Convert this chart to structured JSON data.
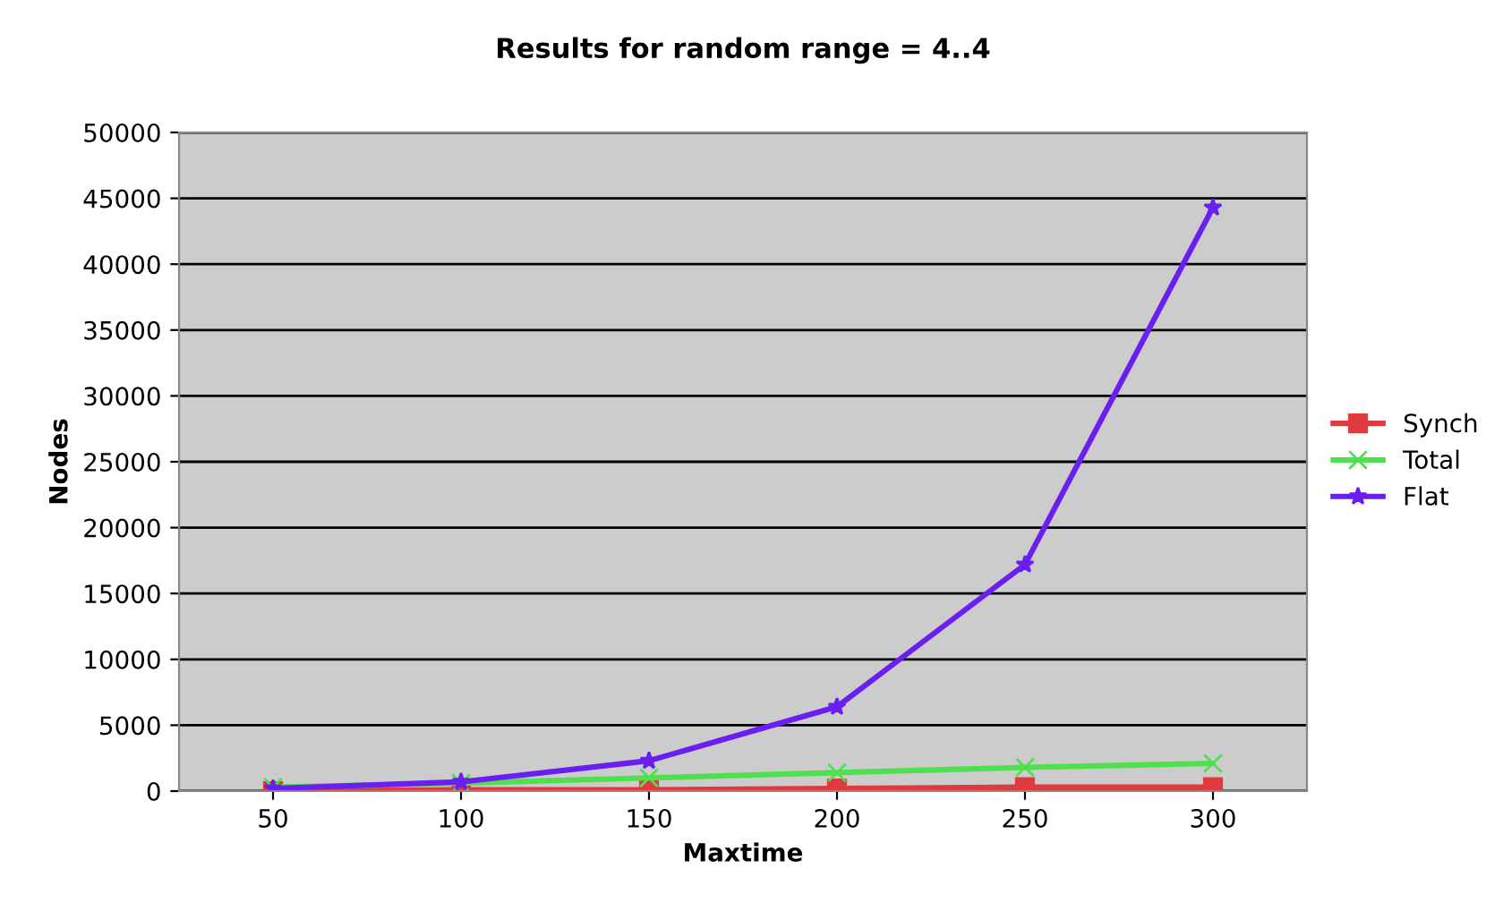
{
  "chart_data": {
    "type": "line",
    "title": "Results for random range = 4..4",
    "xlabel": "Maxtime",
    "ylabel": "Nodes",
    "categories": [
      "50",
      "100",
      "150",
      "200",
      "250",
      "300"
    ],
    "series": [
      {
        "name": "Synch",
        "color": "#e03a3e",
        "marker": "square",
        "values": [
          0,
          100,
          100,
          200,
          300,
          300
        ]
      },
      {
        "name": "Total",
        "color": "#4ee04e",
        "marker": "cross",
        "values": [
          300,
          600,
          1000,
          1400,
          1800,
          2100
        ]
      },
      {
        "name": "Flat",
        "color": "#6a1ff0",
        "marker": "star",
        "values": [
          200,
          700,
          2300,
          6400,
          17200,
          44300
        ]
      }
    ],
    "ylim": [
      0,
      50000
    ],
    "yticks": [
      0,
      5000,
      10000,
      15000,
      20000,
      25000,
      30000,
      35000,
      40000,
      45000,
      50000
    ],
    "grid": "y",
    "legend": "right"
  }
}
